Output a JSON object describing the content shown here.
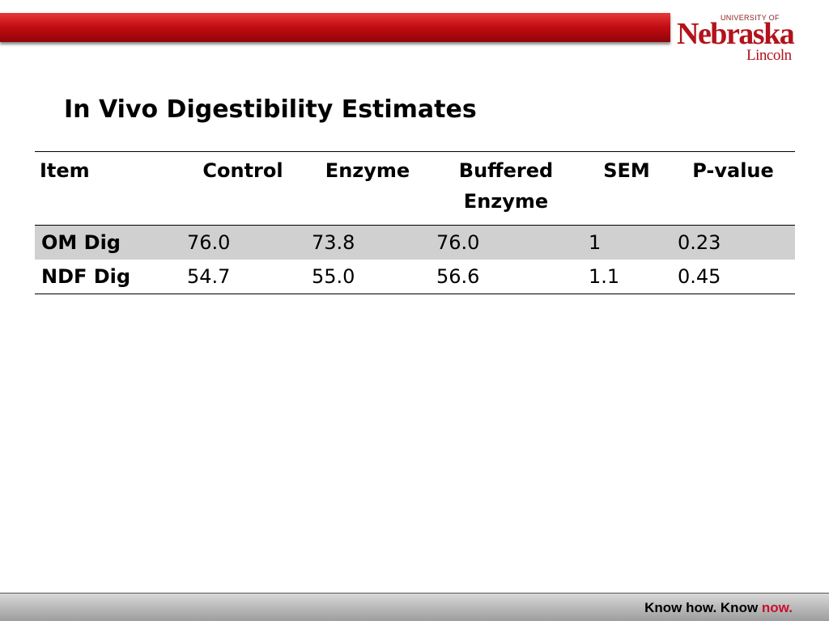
{
  "header": {
    "logo": {
      "university_of": "UNIVERSITY OF",
      "name": "Nebraska",
      "campus": "Lincoln"
    }
  },
  "slide": {
    "title": "In Vivo Digestibility Estimates"
  },
  "table": {
    "columns": [
      "Item",
      "Control",
      "Enzyme",
      "Buffered Enzyme",
      "SEM",
      "P-value"
    ],
    "rows": [
      {
        "item": "OM Dig",
        "control": "76.0",
        "enzyme": "73.8",
        "buffered_enzyme": "76.0",
        "sem": "1",
        "p_value": "0.23"
      },
      {
        "item": "NDF Dig",
        "control": "54.7",
        "enzyme": "55.0",
        "buffered_enzyme": "56.6",
        "sem": "1.1",
        "p_value": "0.45"
      }
    ]
  },
  "footer": {
    "tagline_main": "Know how. Know ",
    "tagline_accent": "now."
  },
  "colors": {
    "brand_red": "#c8102e",
    "row_shade": "#d0d0d0"
  }
}
